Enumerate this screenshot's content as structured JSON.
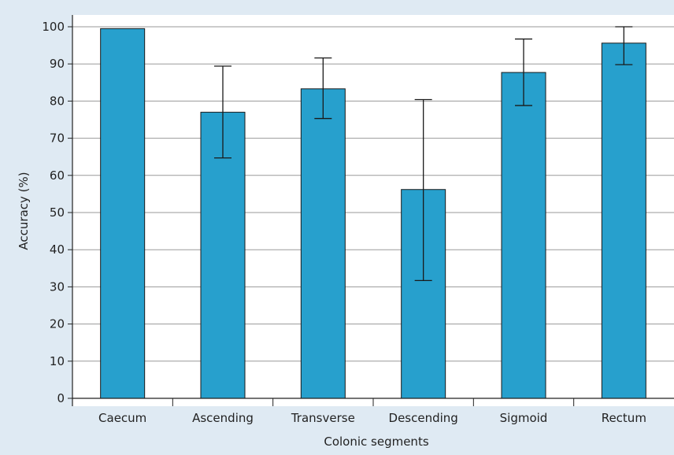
{
  "chart_data": {
    "type": "bar",
    "title": "",
    "xlabel": "Colonic segments",
    "ylabel": "Accuracy (%)",
    "ylim": [
      0,
      100
    ],
    "yticks": [
      0,
      10,
      20,
      30,
      40,
      50,
      60,
      70,
      80,
      90,
      100
    ],
    "grid": "horizontal",
    "categories": [
      "Caecum",
      "Ascending",
      "Transverse",
      "Descending",
      "Sigmoid",
      "Rectum"
    ],
    "values": [
      99.5,
      77,
      83.3,
      56.2,
      87.7,
      95.6
    ],
    "error_low": [
      null,
      64.7,
      75.3,
      31.7,
      78.8,
      89.8
    ],
    "error_high": [
      null,
      89.4,
      91.6,
      80.4,
      96.7,
      100
    ],
    "colors": {
      "bar": "#27a0cd",
      "bar_stroke": "#1a1a1a",
      "plot_background": "#ffffff",
      "page_background": "#dfeaf3",
      "grid": "#9a9a9a",
      "axis": "#222222"
    }
  }
}
